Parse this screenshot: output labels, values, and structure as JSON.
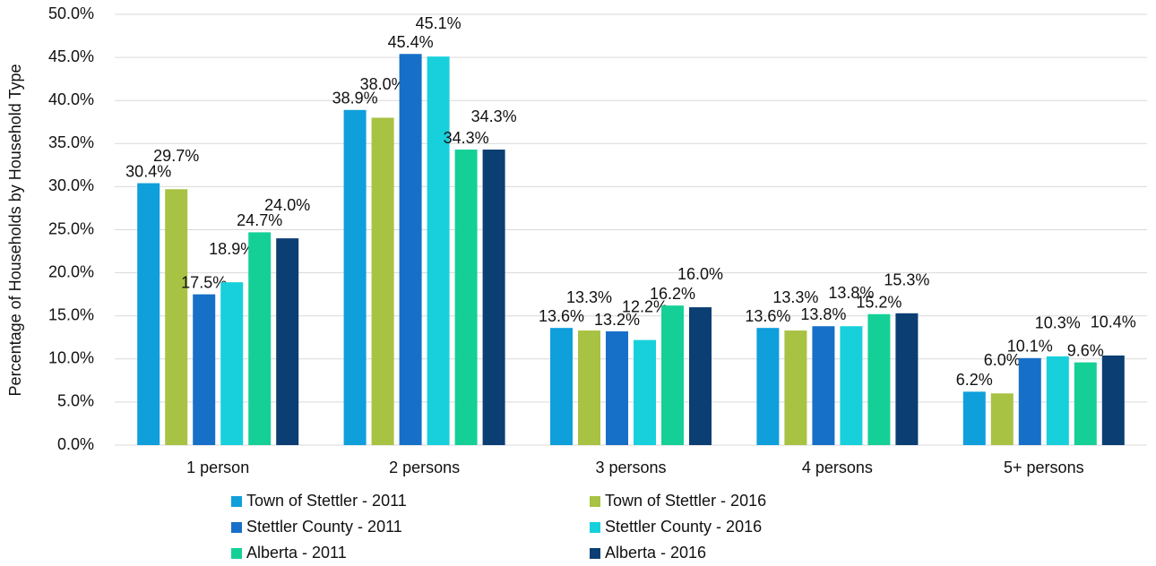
{
  "chart_data": {
    "type": "bar",
    "y_axis_label": "Percentage of Households by Household Type",
    "categories": [
      "1 person",
      "2 persons",
      "3 persons",
      "4 persons",
      "5+ persons"
    ],
    "series": [
      {
        "name": "Town of Stettler - 2011",
        "color": "#0f9fdb",
        "values": [
          30.4,
          38.9,
          13.6,
          13.6,
          6.2
        ],
        "value_labels": [
          "30.4%",
          "38.9%",
          "13.6%",
          "13.6%",
          "6.2%"
        ]
      },
      {
        "name": "Town of Stettler - 2016",
        "color": "#a8c244",
        "values": [
          29.7,
          38.0,
          13.3,
          13.3,
          6.0
        ],
        "value_labels": [
          "29.7%",
          "38.0%",
          "13.3%",
          "13.3%",
          "6.0%"
        ]
      },
      {
        "name": "Stettler County - 2011",
        "color": "#1670c8",
        "values": [
          17.5,
          45.4,
          13.2,
          13.8,
          10.1
        ],
        "value_labels": [
          "17.5%",
          "45.4%",
          "13.2%",
          "13.8%",
          "10.1%"
        ]
      },
      {
        "name": "Stettler County - 2016",
        "color": "#17d0dc",
        "values": [
          18.9,
          45.1,
          12.2,
          13.8,
          10.3
        ],
        "value_labels": [
          "18.9%",
          "45.1%",
          "12.2%",
          "13.8%",
          "10.3%"
        ]
      },
      {
        "name": "Alberta - 2011",
        "color": "#15d096",
        "values": [
          24.7,
          34.3,
          16.2,
          15.2,
          9.6
        ],
        "value_labels": [
          "24.7%",
          "34.3%",
          "16.2%",
          "15.2%",
          "9.6%"
        ]
      },
      {
        "name": "Alberta - 2016",
        "color": "#0b3e73",
        "values": [
          24.0,
          34.3,
          16.0,
          15.3,
          10.4
        ],
        "value_labels": [
          "24.0%",
          "34.3%",
          "16.0%",
          "15.3%",
          "10.4%"
        ]
      }
    ],
    "ylim": [
      0,
      50
    ],
    "yticks": [
      {
        "value": 0,
        "label": "0.0%"
      },
      {
        "value": 5,
        "label": "5.0%"
      },
      {
        "value": 10,
        "label": "10.0%"
      },
      {
        "value": 15,
        "label": "15.0%"
      },
      {
        "value": 20,
        "label": "20.0%"
      },
      {
        "value": 25,
        "label": "25.0%"
      },
      {
        "value": 30,
        "label": "30.0%"
      },
      {
        "value": 35,
        "label": "35.0%"
      },
      {
        "value": 40,
        "label": "40.0%"
      },
      {
        "value": 45,
        "label": "45.0%"
      },
      {
        "value": 50,
        "label": "50.0%"
      }
    ],
    "grid": true
  }
}
